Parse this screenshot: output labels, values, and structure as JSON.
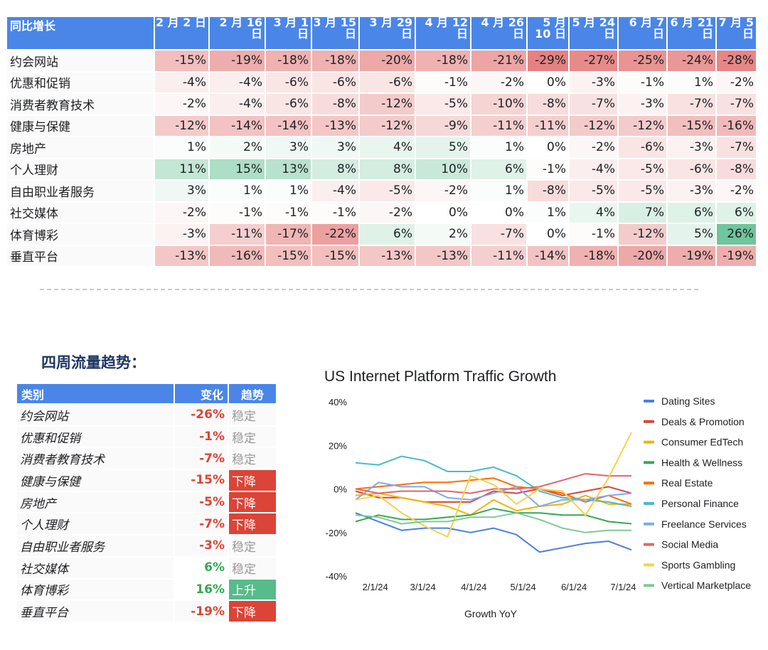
{
  "yoy_table": {
    "corner": "同比增长",
    "columns": [
      "2 月 2 日",
      "2 月 16 日",
      "3 月 1 日",
      "3 月 15 日",
      "3 月 29 日",
      "4 月 12 日",
      "4 月 26 日",
      "5 月 10 日",
      "5 月 24 日",
      "6 月 7 日",
      "6 月 21 日",
      "7 月 5 日"
    ],
    "rows": [
      {
        "category": "约会网站",
        "values": [
          -15,
          -19,
          -18,
          -18,
          -20,
          -18,
          -21,
          -29,
          -27,
          -25,
          -24,
          -28
        ]
      },
      {
        "category": "优惠和促销",
        "values": [
          -4,
          -4,
          -6,
          -6,
          -6,
          -1,
          -2,
          0,
          -3,
          -1,
          1,
          -2
        ]
      },
      {
        "category": "消费者教育技术",
        "values": [
          -2,
          -4,
          -6,
          -8,
          -12,
          -5,
          -10,
          -8,
          -7,
          -3,
          -7,
          -7
        ]
      },
      {
        "category": "健康与保健",
        "values": [
          -12,
          -14,
          -14,
          -13,
          -12,
          -9,
          -11,
          -11,
          -12,
          -12,
          -15,
          -16
        ]
      },
      {
        "category": "房地产",
        "values": [
          1,
          2,
          3,
          3,
          4,
          5,
          1,
          0,
          -2,
          -6,
          -3,
          -7
        ]
      },
      {
        "category": "个人理财",
        "values": [
          11,
          15,
          13,
          8,
          8,
          10,
          6,
          -1,
          -4,
          -5,
          -6,
          -8
        ]
      },
      {
        "category": "自由职业者服务",
        "values": [
          3,
          1,
          1,
          -4,
          -5,
          -2,
          1,
          -8,
          -5,
          -5,
          -3,
          -2
        ]
      },
      {
        "category": "社交媒体",
        "values": [
          -2,
          -1,
          -1,
          -1,
          -2,
          0,
          0,
          1,
          4,
          7,
          6,
          6
        ]
      },
      {
        "category": "体育博彩",
        "values": [
          -3,
          -11,
          -17,
          -22,
          6,
          2,
          -7,
          0,
          -1,
          -12,
          5,
          26
        ]
      },
      {
        "category": "垂直平台",
        "values": [
          -13,
          -16,
          -15,
          -15,
          -13,
          -13,
          -11,
          -14,
          -18,
          -20,
          -19,
          -19
        ]
      }
    ],
    "colors": {
      "negative": "#e06666",
      "positive": "#57bb8a",
      "header": "#4a86e8"
    }
  },
  "trend": {
    "title": "四周流量趋势：",
    "headers": [
      "类别",
      "变化",
      "趋势"
    ],
    "rows": [
      {
        "category": "约会网站",
        "change": "-26%",
        "trend": "稳定",
        "status": "stable"
      },
      {
        "category": "优惠和促销",
        "change": "-1%",
        "trend": "稳定",
        "status": "stable"
      },
      {
        "category": "消费者教育技术",
        "change": "-7%",
        "trend": "稳定",
        "status": "stable"
      },
      {
        "category": "健康与保健",
        "change": "-15%",
        "trend": "下降",
        "status": "down"
      },
      {
        "category": "房地产",
        "change": "-5%",
        "trend": "下降",
        "status": "down"
      },
      {
        "category": "个人理财",
        "change": "-7%",
        "trend": "下降",
        "status": "down"
      },
      {
        "category": "自由职业者服务",
        "change": "-3%",
        "trend": "稳定",
        "status": "stable"
      },
      {
        "category": "社交媒体",
        "change": "6%",
        "trend": "稳定",
        "status": "stable"
      },
      {
        "category": "体育博彩",
        "change": "16%",
        "trend": "上升",
        "status": "up"
      },
      {
        "category": "垂直平台",
        "change": "-19%",
        "trend": "下降",
        "status": "down"
      }
    ],
    "colors": {
      "down": "#db4437",
      "up": "#57bb8a",
      "stable_text": "#999999",
      "negative_text": "#db4437",
      "positive_text": "#34a853"
    }
  },
  "chart_data": {
    "type": "line",
    "title": "US Internet Platform Traffic Growth",
    "xlabel": "Growth YoY",
    "ylabel": "",
    "x": [
      "2024-01-20",
      "2024-02-03",
      "2024-02-17",
      "2024-03-02",
      "2024-03-16",
      "2024-03-30",
      "2024-04-13",
      "2024-04-27",
      "2024-05-11",
      "2024-05-25",
      "2024-06-08",
      "2024-06-22",
      "2024-07-06"
    ],
    "x_ticks": [
      "2/1/24",
      "3/1/24",
      "4/1/24",
      "5/1/24",
      "6/1/24",
      "7/1/24"
    ],
    "x_tick_dates": [
      "2024-02-01",
      "2024-03-01",
      "2024-04-01",
      "2024-05-01",
      "2024-06-01",
      "2024-07-01"
    ],
    "y_ticks": [
      "40%",
      "20%",
      "0%",
      "-20%",
      "-40%"
    ],
    "ylim": [
      -40,
      40
    ],
    "grid": false,
    "legend_position": "right",
    "series": [
      {
        "name": "Dating Sites",
        "color": "#4a7fe0",
        "values": [
          -11,
          -15,
          -19,
          -18,
          -18,
          -20,
          -18,
          -21,
          -29,
          -27,
          -25,
          -24,
          -28
        ]
      },
      {
        "name": "Deals & Promotion",
        "color": "#db4437",
        "values": [
          -1,
          -4,
          -4,
          -6,
          -6,
          -6,
          -1,
          -2,
          0,
          -3,
          -1,
          1,
          -2
        ]
      },
      {
        "name": "Consumer EdTech",
        "color": "#f4b400",
        "values": [
          -3,
          -2,
          -4,
          -6,
          -8,
          -12,
          -5,
          -10,
          -8,
          -7,
          -3,
          -7,
          -7
        ]
      },
      {
        "name": "Health & Wellness",
        "color": "#34a853",
        "values": [
          -15,
          -12,
          -14,
          -14,
          -13,
          -12,
          -9,
          -11,
          -11,
          -12,
          -12,
          -15,
          -16
        ]
      },
      {
        "name": "Real Estate",
        "color": "#ff6d01",
        "values": [
          0,
          1,
          2,
          3,
          3,
          4,
          5,
          1,
          0,
          -2,
          -6,
          -3,
          -7
        ]
      },
      {
        "name": "Personal Finance",
        "color": "#46bdc6",
        "values": [
          12,
          11,
          15,
          13,
          8,
          8,
          10,
          6,
          -1,
          -4,
          -5,
          -6,
          -8
        ]
      },
      {
        "name": "Freelance Services",
        "color": "#7baaf7",
        "values": [
          -5,
          3,
          1,
          1,
          -4,
          -5,
          -2,
          1,
          -8,
          -5,
          -5,
          -3,
          -2
        ]
      },
      {
        "name": "Social Media",
        "color": "#e06666",
        "values": [
          0,
          -2,
          -1,
          -1,
          -1,
          -2,
          0,
          0,
          1,
          4,
          7,
          6,
          6
        ]
      },
      {
        "name": "Sports Gambling",
        "color": "#f7d24a",
        "values": [
          -5,
          -3,
          -11,
          -17,
          -22,
          6,
          2,
          -7,
          0,
          -1,
          -12,
          5,
          26
        ]
      },
      {
        "name": "Vertical Marketplace",
        "color": "#81c995",
        "values": [
          -12,
          -13,
          -16,
          -15,
          -15,
          -13,
          -13,
          -11,
          -14,
          -18,
          -20,
          -19,
          -19
        ]
      }
    ]
  }
}
